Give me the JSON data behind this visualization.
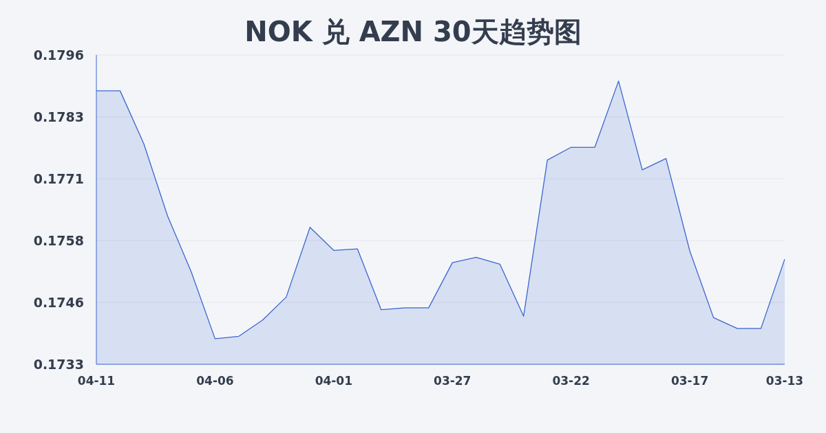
{
  "chart_data": {
    "type": "area",
    "title": "NOK 兑 AZN 30天趋势图",
    "categories": [
      "04-11",
      null,
      null,
      null,
      null,
      "04-06",
      null,
      null,
      null,
      null,
      "04-01",
      null,
      null,
      null,
      null,
      "03-27",
      null,
      null,
      null,
      null,
      "03-22",
      null,
      null,
      null,
      null,
      "03-17",
      null,
      null,
      null,
      "03-13"
    ],
    "series": [
      {
        "color": "#3a66d0",
        "values": [
          0.17887,
          0.17887,
          0.17779,
          0.17632,
          0.17518,
          0.17382,
          0.17387,
          0.1742,
          0.17467,
          0.17609,
          0.17562,
          0.17565,
          0.17441,
          0.17445,
          0.17445,
          0.17537,
          0.17548,
          0.17534,
          0.17428,
          0.17746,
          0.17772,
          0.17772,
          0.17907,
          0.17726,
          0.17749,
          0.17561,
          0.17425,
          0.17403,
          0.17403,
          0.17544
        ]
      }
    ],
    "ylim": [
      0.1733,
      0.1796
    ],
    "yticks": [
      {
        "value": 0.1733,
        "label": "0.1733"
      },
      {
        "value": 0.17456,
        "label": "0.1746"
      },
      {
        "value": 0.17582,
        "label": "0.1758"
      },
      {
        "value": 0.17708,
        "label": "0.1771"
      },
      {
        "value": 0.17834,
        "label": "0.1783"
      },
      {
        "value": 0.1796,
        "label": "0.1796"
      }
    ],
    "grid": "y"
  }
}
